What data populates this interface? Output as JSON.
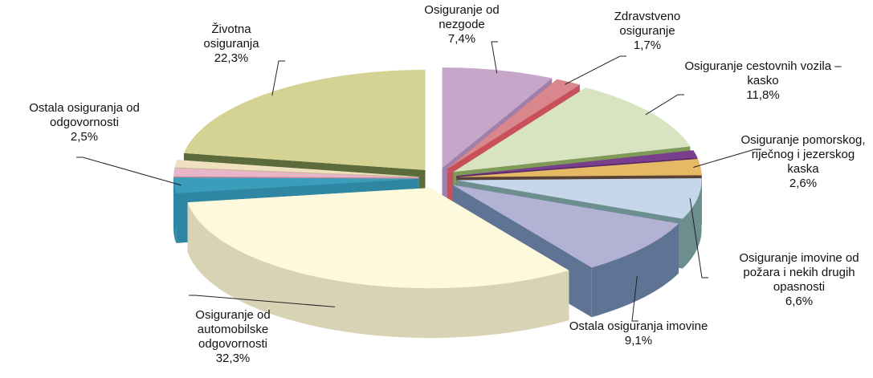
{
  "chart_data": {
    "type": "pie3d",
    "categories": [
      "Osiguranje od nezgode",
      "Zdravstveno osiguranje",
      "Osiguranje cestovnih vozila – kasko",
      null,
      "Osiguranje pomorskog, riječnog i jezerskog kaska",
      "Osiguranje imovine od požara i nekih drugih opasnosti",
      "Ostala osiguranja imovine",
      "Osiguranje od automobilske odgovornosti",
      "Ostala osiguranja od odgovornosti",
      null,
      null,
      "Životna osiguranja"
    ],
    "values": [
      7.4,
      1.7,
      11.8,
      1.2,
      2.6,
      6.6,
      9.1,
      32.3,
      2.5,
      1.3,
      1.2,
      22.3
    ],
    "value_labels": [
      "7,4%",
      "1,7%",
      "11,8%",
      null,
      "2,6%",
      "6,6%",
      "9,1%",
      "32,3%",
      "2,5%",
      null,
      null,
      "22,3%"
    ],
    "colors": [
      "#c6a6c9",
      "#d9868c",
      "#d8e4c1",
      "#7a3f8c",
      "#e6b964",
      "#c6d7eb",
      "#b2b2d5",
      "#fdf9dc",
      "#3a9ebb",
      "#e9b5c9",
      "#efe0c0",
      "#d4d393"
    ],
    "side_colors": [
      "#a080aa",
      "#c8505b",
      "#7f9a58",
      "#56286a",
      "#5a4236",
      "#6c8e8e",
      "#5f7395",
      "#d9d3b5",
      "#2e86a2",
      "#c58aa2",
      "#c9b894",
      "#5b6b3a"
    ]
  }
}
